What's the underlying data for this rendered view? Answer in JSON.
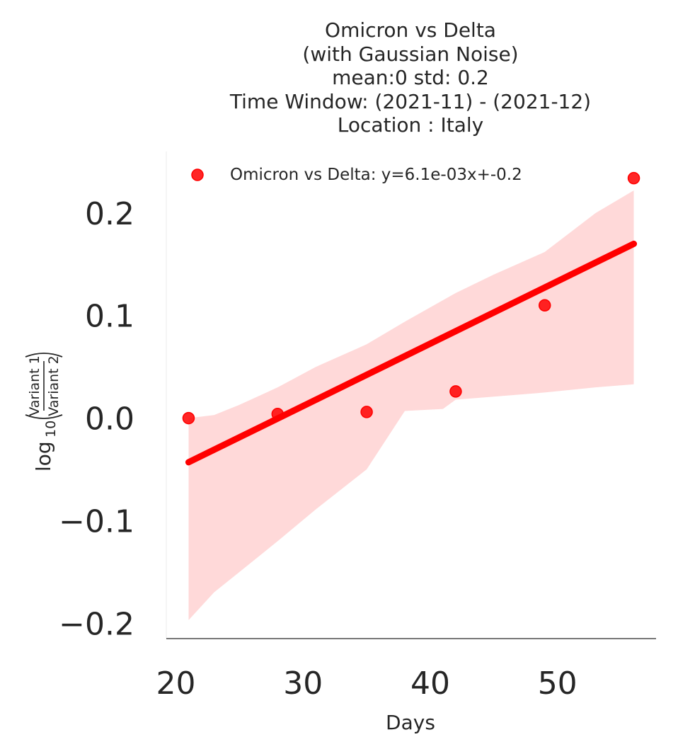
{
  "chart_data": {
    "type": "scatter",
    "title_lines": [
      "Omicron vs Delta",
      "(with Gaussian Noise)",
      "mean:0 std: 0.2",
      "Time Window: (2021-11) - (2021-12)",
      "Location : Italy"
    ],
    "xlabel": "Days",
    "ylabel": {
      "prefix": "log",
      "subscript": "10",
      "numerator": "Variant 1",
      "denominator": "Variant 2"
    },
    "xlim": [
      19.25,
      57.75
    ],
    "ylim": [
      -0.215,
      0.26
    ],
    "x_ticks": [
      20,
      30,
      40,
      50
    ],
    "x_tick_labels": [
      "20",
      "30",
      "40",
      "50"
    ],
    "y_ticks": [
      -0.2,
      -0.1,
      0.0,
      0.1,
      0.2
    ],
    "y_tick_labels": [
      "−0.2",
      "−0.1",
      "0.0",
      "0.1",
      "0.2"
    ],
    "series": [
      {
        "name": "Omicron vs Delta: y=6.1e-03x+-0.2",
        "color": "#ff0000",
        "points": [
          {
            "x": 21,
            "y": 0.0
          },
          {
            "x": 28,
            "y": 0.004
          },
          {
            "x": 35,
            "y": 0.006
          },
          {
            "x": 42,
            "y": 0.026
          },
          {
            "x": 49,
            "y": 0.11
          },
          {
            "x": 56,
            "y": 0.234
          }
        ],
        "regression": {
          "x": [
            21,
            56
          ],
          "y": [
            -0.043,
            0.17
          ]
        },
        "confidence_band": {
          "x": [
            21,
            23,
            25,
            28,
            31,
            35,
            38,
            41,
            42,
            45,
            49,
            53,
            56
          ],
          "upper": [
            0.0,
            0.003,
            0.013,
            0.03,
            0.05,
            0.072,
            0.094,
            0.115,
            0.122,
            0.14,
            0.162,
            0.2,
            0.222
          ],
          "lower": [
            -0.197,
            -0.17,
            -0.15,
            -0.12,
            -0.089,
            -0.05,
            0.007,
            0.009,
            0.018,
            0.021,
            0.025,
            0.03,
            0.033
          ]
        }
      }
    ],
    "legend_position": "upper left",
    "grid": false
  }
}
